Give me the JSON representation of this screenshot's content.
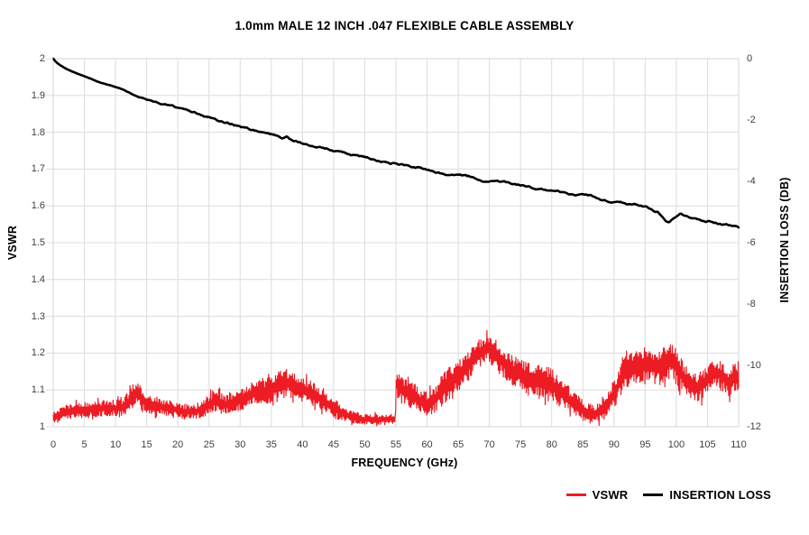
{
  "title": "1.0mm MALE 12 INCH .047 FLEXIBLE CABLE ASSEMBLY",
  "colors": {
    "vswr_trace": "#ed1c24",
    "insertion_loss_trace": "#000000",
    "grid": "#dcdcdc",
    "plot_border": "#d6d6d6",
    "tick_label": "#3f3f3f",
    "background": "#ffffff"
  },
  "chart_data": {
    "type": "line",
    "title": "1.0mm MALE 12 INCH .047 FLEXIBLE CABLE ASSEMBLY",
    "xlabel": "FREQUENCY (GHz)",
    "ylabel_left": "VSWR",
    "ylabel_right": "INSERTION LOSS (DB)",
    "xlim": [
      0,
      110
    ],
    "ylim_left": [
      1,
      2
    ],
    "ylim_right": [
      -12,
      0
    ],
    "grid": true,
    "legend_position": "bottom-right",
    "x_ticks": [
      "0",
      "5",
      "10",
      "15",
      "20",
      "25",
      "30",
      "35",
      "40",
      "45",
      "50",
      "55",
      "60",
      "65",
      "70",
      "75",
      "80",
      "85",
      "90",
      "95",
      "100",
      "105",
      "110"
    ],
    "y_left_ticks": [
      "2",
      "1.9",
      "1.8",
      "1.7",
      "1.6",
      "1.5",
      "1.4",
      "1.3",
      "1.2",
      "1.1",
      "1"
    ],
    "y_right_ticks": [
      "0",
      "-2",
      "-4",
      "-6",
      "-8",
      "-10",
      "-12"
    ],
    "legend": [
      {
        "label": "VSWR",
        "color": "#ed1c24"
      },
      {
        "label": "INSERTION LOSS",
        "color": "#000000"
      }
    ],
    "series": [
      {
        "name": "VSWR",
        "axis": "left",
        "style": "noisy-band",
        "comment": "points are [freq_GHz, band_center, band_halfwidth] of the dense noisy trace",
        "points": [
          [
            0,
            1.025,
            0.018
          ],
          [
            2,
            1.04,
            0.022
          ],
          [
            5,
            1.045,
            0.022
          ],
          [
            8,
            1.05,
            0.022
          ],
          [
            11,
            1.05,
            0.025
          ],
          [
            12.5,
            1.075,
            0.03
          ],
          [
            13.5,
            1.09,
            0.03
          ],
          [
            15,
            1.065,
            0.028
          ],
          [
            17,
            1.055,
            0.025
          ],
          [
            19,
            1.05,
            0.025
          ],
          [
            21,
            1.04,
            0.022
          ],
          [
            23,
            1.042,
            0.022
          ],
          [
            25,
            1.06,
            0.028
          ],
          [
            26,
            1.07,
            0.03
          ],
          [
            27.5,
            1.06,
            0.028
          ],
          [
            29,
            1.065,
            0.03
          ],
          [
            31,
            1.08,
            0.032
          ],
          [
            33,
            1.1,
            0.035
          ],
          [
            34.5,
            1.095,
            0.038
          ],
          [
            36,
            1.11,
            0.04
          ],
          [
            37.5,
            1.12,
            0.04
          ],
          [
            39,
            1.105,
            0.038
          ],
          [
            41,
            1.095,
            0.035
          ],
          [
            43,
            1.075,
            0.032
          ],
          [
            45,
            1.05,
            0.028
          ],
          [
            47,
            1.032,
            0.02
          ],
          [
            49,
            1.022,
            0.016
          ],
          [
            51,
            1.02,
            0.015
          ],
          [
            53,
            1.02,
            0.015
          ],
          [
            54.9,
            1.022,
            0.015
          ],
          [
            55.1,
            1.12,
            0.05
          ],
          [
            55.6,
            1.105,
            0.042
          ],
          [
            57,
            1.09,
            0.038
          ],
          [
            58.5,
            1.075,
            0.035
          ],
          [
            60,
            1.06,
            0.032
          ],
          [
            61.5,
            1.08,
            0.04
          ],
          [
            63,
            1.11,
            0.045
          ],
          [
            65,
            1.14,
            0.045
          ],
          [
            67,
            1.175,
            0.045
          ],
          [
            68.5,
            1.2,
            0.04
          ],
          [
            69.7,
            1.215,
            0.035
          ],
          [
            71,
            1.195,
            0.04
          ],
          [
            72.5,
            1.17,
            0.045
          ],
          [
            74,
            1.15,
            0.045
          ],
          [
            76,
            1.135,
            0.045
          ],
          [
            78,
            1.125,
            0.045
          ],
          [
            80,
            1.115,
            0.045
          ],
          [
            82,
            1.085,
            0.04
          ],
          [
            84,
            1.055,
            0.032
          ],
          [
            85.5,
            1.04,
            0.03
          ],
          [
            87,
            1.035,
            0.03
          ],
          [
            88.5,
            1.05,
            0.032
          ],
          [
            90,
            1.09,
            0.04
          ],
          [
            91.5,
            1.14,
            0.048
          ],
          [
            93,
            1.165,
            0.048
          ],
          [
            95,
            1.17,
            0.05
          ],
          [
            97,
            1.16,
            0.05
          ],
          [
            98.5,
            1.175,
            0.05
          ],
          [
            99.3,
            1.18,
            0.05
          ],
          [
            100.5,
            1.15,
            0.048
          ],
          [
            102,
            1.115,
            0.042
          ],
          [
            103.5,
            1.105,
            0.04
          ],
          [
            105,
            1.13,
            0.04
          ],
          [
            106.3,
            1.15,
            0.038
          ],
          [
            107.5,
            1.135,
            0.04
          ],
          [
            108.5,
            1.12,
            0.042
          ],
          [
            109.3,
            1.135,
            0.042
          ],
          [
            110,
            1.14,
            0.04
          ]
        ]
      },
      {
        "name": "INSERTION LOSS",
        "axis": "right",
        "style": "line",
        "comment": "points are [freq_GHz, insertion_loss_dB]",
        "points": [
          [
            0,
            0
          ],
          [
            0.5,
            -0.12
          ],
          [
            1,
            -0.2
          ],
          [
            2,
            -0.32
          ],
          [
            3,
            -0.42
          ],
          [
            4,
            -0.5
          ],
          [
            5,
            -0.58
          ],
          [
            7,
            -0.75
          ],
          [
            10,
            -0.95
          ],
          [
            13,
            -1.18
          ],
          [
            15,
            -1.33
          ],
          [
            18,
            -1.5
          ],
          [
            20,
            -1.63
          ],
          [
            25,
            -1.93
          ],
          [
            30,
            -2.22
          ],
          [
            33,
            -2.38
          ],
          [
            35,
            -2.5
          ],
          [
            36,
            -2.55
          ],
          [
            36.8,
            -2.67
          ],
          [
            37.4,
            -2.6
          ],
          [
            38,
            -2.67
          ],
          [
            40,
            -2.78
          ],
          [
            42,
            -2.87
          ],
          [
            45,
            -3.0
          ],
          [
            48,
            -3.13
          ],
          [
            50,
            -3.22
          ],
          [
            52,
            -3.32
          ],
          [
            55,
            -3.42
          ],
          [
            58,
            -3.55
          ],
          [
            60,
            -3.62
          ],
          [
            62,
            -3.72
          ],
          [
            65,
            -3.82
          ],
          [
            68,
            -3.92
          ],
          [
            70,
            -3.98
          ],
          [
            72,
            -4.05
          ],
          [
            75,
            -4.12
          ],
          [
            78,
            -4.25
          ],
          [
            80,
            -4.32
          ],
          [
            82,
            -4.42
          ],
          [
            85,
            -4.5
          ],
          [
            87,
            -4.55
          ],
          [
            88,
            -4.6
          ],
          [
            90,
            -4.65
          ],
          [
            91,
            -4.62
          ],
          [
            93,
            -4.72
          ],
          [
            95,
            -4.8
          ],
          [
            96,
            -4.88
          ],
          [
            97,
            -4.97
          ],
          [
            98,
            -5.18
          ],
          [
            98.8,
            -5.32
          ],
          [
            99.5,
            -5.2
          ],
          [
            100.5,
            -5.05
          ],
          [
            101.5,
            -5.1
          ],
          [
            102.5,
            -5.18
          ],
          [
            104,
            -5.25
          ],
          [
            105,
            -5.28
          ],
          [
            106,
            -5.32
          ],
          [
            107,
            -5.38
          ],
          [
            108,
            -5.42
          ],
          [
            109,
            -5.48
          ],
          [
            110,
            -5.55
          ]
        ]
      }
    ]
  }
}
